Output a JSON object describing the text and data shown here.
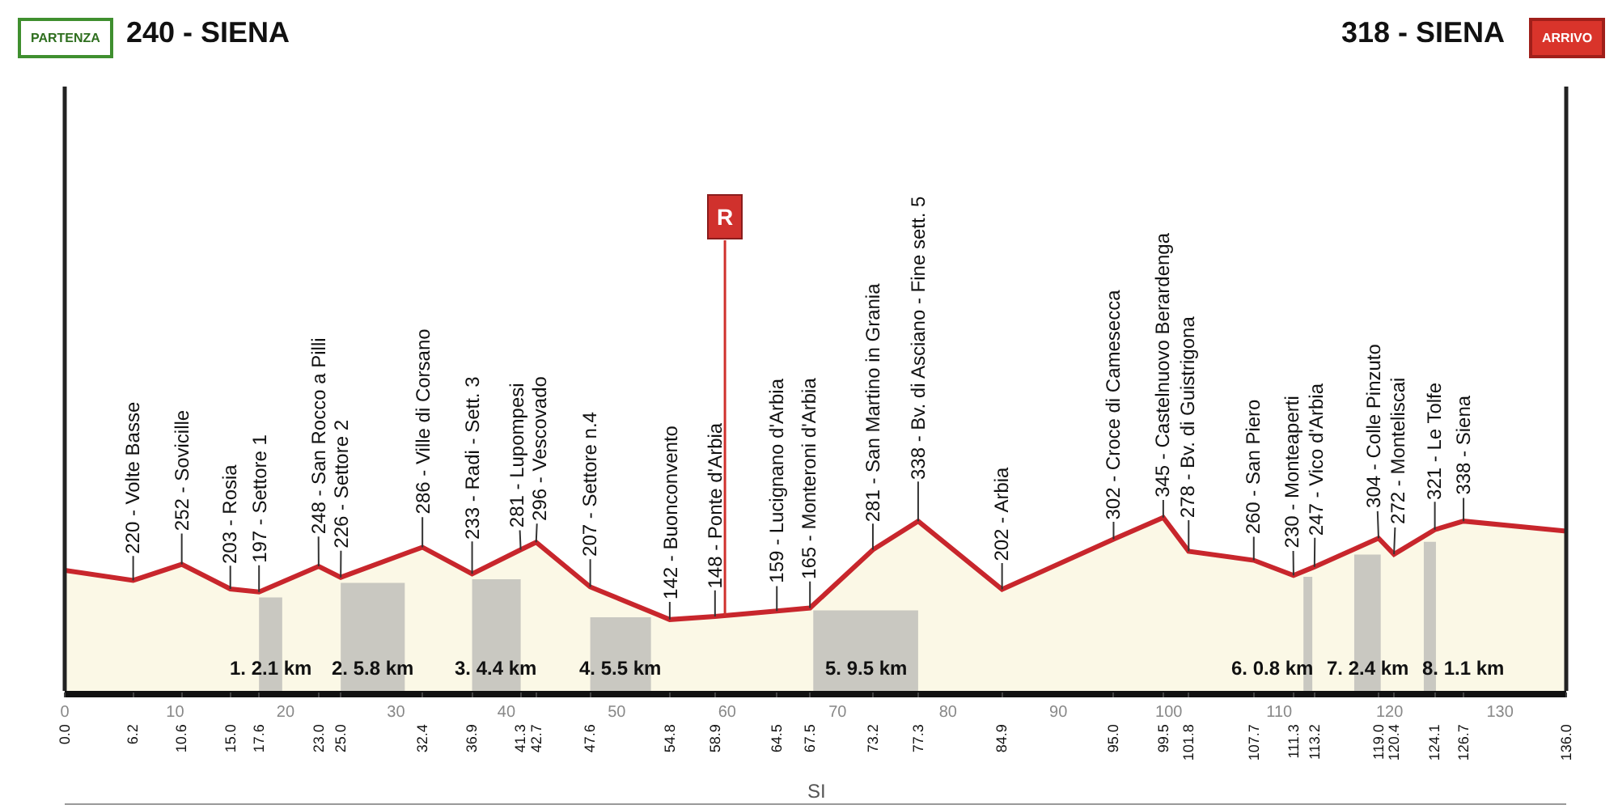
{
  "chart_data": {
    "type": "area",
    "x": [
      0,
      6.2,
      10.6,
      15,
      17.6,
      23,
      25,
      32.4,
      36.9,
      41.3,
      42.7,
      47.6,
      54.8,
      58.9,
      64.5,
      67.5,
      73.2,
      77.3,
      84.9,
      95,
      99.5,
      101.8,
      107.7,
      111.3,
      113.2,
      119,
      120.4,
      124.1,
      126.7,
      136
    ],
    "values": [
      240,
      220,
      252,
      203,
      197,
      248,
      226,
      286,
      233,
      281,
      296,
      207,
      142,
      148,
      159,
      165,
      281,
      338,
      202,
      302,
      345,
      278,
      260,
      230,
      247,
      304,
      272,
      321,
      338,
      318
    ],
    "color": "#c8262c",
    "value_labels": [
      null,
      "220 - Volte Basse",
      "252 - Sovicille",
      "203 - Rosia",
      "197 - Settore 1",
      "248 - San Rocco a Pilli",
      "226 - Settore 2",
      "286 - Ville di Corsano",
      "233 - Radi - Sett. 3",
      "281 - Lupompesi",
      "296 - Vescovado",
      "207 - Settore n.4",
      "142 - Buonconvento",
      "148 - Ponte d'Arbia",
      "159 - Lucignano d'Arbia",
      "165 - Monteroni d'Arbia",
      "281 - San Martino in Grania",
      "338 - Bv. di Asciano - Fine sett. 5",
      "202 - Arbia",
      "302 - Croce di Camesecca",
      "345 - Castelnuovo Berardenga",
      "278 - Bv. di Guistrigona",
      "260 - San Piero",
      "230 - Monteaperti",
      "247 - Vico d'Arbia",
      "304 - Colle Pinzuto",
      "272 - Monteliscai",
      "321 - Le Tolfe",
      "338 - Siena",
      null
    ],
    "xlim": [
      0,
      136
    ],
    "xticks": [
      0,
      10,
      20,
      30,
      40,
      50,
      60,
      70,
      80,
      90,
      100,
      110,
      120,
      130
    ],
    "x2lim": [
      0,
      136
    ],
    "x2ticks": [
      {
        "value": 0,
        "label": "0.0"
      },
      6.2,
      10.6,
      {
        "value": 15,
        "label": "15.0"
      },
      17.6,
      {
        "value": 23,
        "label": "23.0"
      },
      {
        "value": 25,
        "label": "25.0"
      },
      32.4,
      36.9,
      41.3,
      42.7,
      47.6,
      54.8,
      58.9,
      64.5,
      67.5,
      73.2,
      77.3,
      84.9,
      {
        "value": 95,
        "label": "95.0"
      },
      99.5,
      101.8,
      107.7,
      111.3,
      113.2,
      {
        "value": 119,
        "label": "119.0"
      },
      120.4,
      124.1,
      126.7,
      {
        "value": 136,
        "label": "136.0"
      }
    ],
    "tick_labels": "x",
    "ref_lines": [
      {
        "axis": "x",
        "value": 0,
        "label": "240 - SIENA"
      },
      {
        "axis": "x",
        "value": 59.8,
        "label": "R",
        "color": "#d0312d"
      },
      {
        "axis": "x",
        "value": 136,
        "label": "318 - SIENA"
      }
    ],
    "bands": [
      {
        "axis": "x",
        "from": 17.6,
        "to": 19.7,
        "label": "1. 2.1 km",
        "color": "#a8a8a8"
      },
      {
        "axis": "x",
        "from": 25,
        "to": 30.8,
        "label": "2. 5.8 km",
        "color": "#a8a8a8"
      },
      {
        "axis": "x",
        "from": 36.9,
        "to": 41.3,
        "label": "3. 4.4 km",
        "color": "#a8a8a8"
      },
      {
        "axis": "x",
        "from": 47.6,
        "to": 53.1,
        "label": "4. 5.5 km",
        "color": "#a8a8a8"
      },
      {
        "axis": "x",
        "from": 67.8,
        "to": 77.3,
        "label": "5. 9.5 km",
        "color": "#a8a8a8"
      },
      {
        "axis": "x",
        "from": 112.2,
        "to": 113,
        "label": "6. 0.8 km",
        "color": "#a8a8a8"
      },
      {
        "axis": "x",
        "from": 116.8,
        "to": 119.2,
        "label": "7. 2.4 km",
        "color": "#a8a8a8"
      },
      {
        "axis": "x",
        "from": 123.1,
        "to": 124.2,
        "label": "8. 1.1 km",
        "color": "#a8a8a8"
      }
    ],
    "annotations": [
      "PARTENZA",
      "ARRIVO",
      "SI"
    ]
  }
}
